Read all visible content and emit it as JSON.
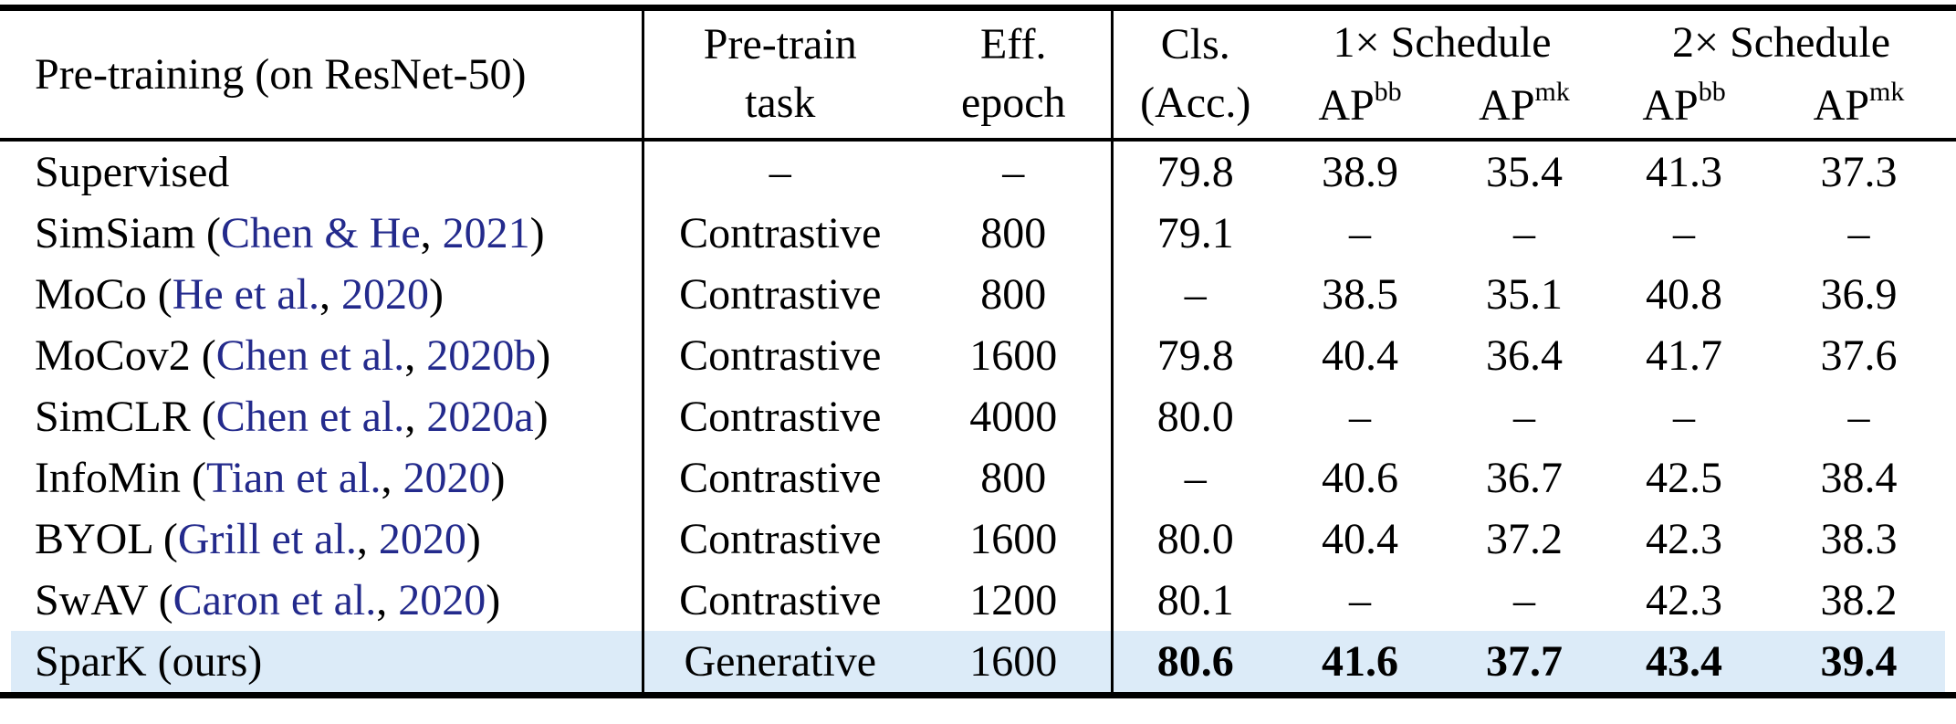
{
  "colors": {
    "link_blue": "#232a8c",
    "highlight_blue": "#dcebf8",
    "rule_black": "#000000"
  },
  "header": {
    "pretraining": "Pre-training (on ResNet-50)",
    "task": [
      "Pre-train",
      "task"
    ],
    "epoch": [
      "Eff.",
      "epoch"
    ],
    "cls": [
      "Cls.",
      "(Acc.)"
    ],
    "group_1x": "1× Schedule",
    "group_2x": "2× Schedule",
    "ap_headers": [
      {
        "base": "AP",
        "sup": "bb"
      },
      {
        "base": "AP",
        "sup": "mk"
      },
      {
        "base": "AP",
        "sup": "bb"
      },
      {
        "base": "AP",
        "sup": "mk"
      }
    ]
  },
  "rows": [
    {
      "name_segments": [
        {
          "t": "Supervised"
        }
      ],
      "task": "–",
      "epoch": "–",
      "cls": "79.8",
      "ap_1x_bb": "38.9",
      "ap_1x_mk": "35.4",
      "ap_2x_bb": "41.3",
      "ap_2x_mk": "37.3",
      "highlight": false,
      "bold_values": false
    },
    {
      "name_segments": [
        {
          "t": "SimSiam ("
        },
        {
          "t": "Chen & He",
          "link": true
        },
        {
          "t": ","
        },
        {
          "t": " 2021",
          "link": true
        },
        {
          "t": ")"
        }
      ],
      "task": "Contrastive",
      "epoch": "800",
      "cls": "79.1",
      "ap_1x_bb": "–",
      "ap_1x_mk": "–",
      "ap_2x_bb": "–",
      "ap_2x_mk": "–",
      "highlight": false,
      "bold_values": false
    },
    {
      "name_segments": [
        {
          "t": "MoCo ("
        },
        {
          "t": "He et al.",
          "link": true
        },
        {
          "t": ","
        },
        {
          "t": " 2020",
          "link": true
        },
        {
          "t": ")"
        }
      ],
      "task": "Contrastive",
      "epoch": "800",
      "cls": "–",
      "ap_1x_bb": "38.5",
      "ap_1x_mk": "35.1",
      "ap_2x_bb": "40.8",
      "ap_2x_mk": "36.9",
      "highlight": false,
      "bold_values": false
    },
    {
      "name_segments": [
        {
          "t": "MoCov2 ("
        },
        {
          "t": "Chen et al.",
          "link": true
        },
        {
          "t": ","
        },
        {
          "t": " 2020b",
          "link": true
        },
        {
          "t": ")"
        }
      ],
      "task": "Contrastive",
      "epoch": "1600",
      "cls": "79.8",
      "ap_1x_bb": "40.4",
      "ap_1x_mk": "36.4",
      "ap_2x_bb": "41.7",
      "ap_2x_mk": "37.6",
      "highlight": false,
      "bold_values": false
    },
    {
      "name_segments": [
        {
          "t": "SimCLR ("
        },
        {
          "t": "Chen et al.",
          "link": true
        },
        {
          "t": ","
        },
        {
          "t": " 2020a",
          "link": true
        },
        {
          "t": ")"
        }
      ],
      "task": "Contrastive",
      "epoch": "4000",
      "cls": "80.0",
      "ap_1x_bb": "–",
      "ap_1x_mk": "–",
      "ap_2x_bb": "–",
      "ap_2x_mk": "–",
      "highlight": false,
      "bold_values": false
    },
    {
      "name_segments": [
        {
          "t": "InfoMin ("
        },
        {
          "t": "Tian et al.",
          "link": true
        },
        {
          "t": ","
        },
        {
          "t": " 2020",
          "link": true
        },
        {
          "t": ")"
        }
      ],
      "task": "Contrastive",
      "epoch": "800",
      "cls": "–",
      "ap_1x_bb": "40.6",
      "ap_1x_mk": "36.7",
      "ap_2x_bb": "42.5",
      "ap_2x_mk": "38.4",
      "highlight": false,
      "bold_values": false
    },
    {
      "name_segments": [
        {
          "t": "BYOL ("
        },
        {
          "t": "Grill et al.",
          "link": true
        },
        {
          "t": ","
        },
        {
          "t": " 2020",
          "link": true
        },
        {
          "t": ")"
        }
      ],
      "task": "Contrastive",
      "epoch": "1600",
      "cls": "80.0",
      "ap_1x_bb": "40.4",
      "ap_1x_mk": "37.2",
      "ap_2x_bb": "42.3",
      "ap_2x_mk": "38.3",
      "highlight": false,
      "bold_values": false
    },
    {
      "name_segments": [
        {
          "t": "SwAV ("
        },
        {
          "t": "Caron et al.",
          "link": true
        },
        {
          "t": ","
        },
        {
          "t": " 2020",
          "link": true
        },
        {
          "t": ")"
        }
      ],
      "task": "Contrastive",
      "epoch": "1200",
      "cls": "80.1",
      "ap_1x_bb": "–",
      "ap_1x_mk": "–",
      "ap_2x_bb": "42.3",
      "ap_2x_mk": "38.2",
      "highlight": false,
      "bold_values": false
    },
    {
      "name_segments": [
        {
          "t": "SparK (ours)"
        }
      ],
      "task": "Generative",
      "epoch": "1600",
      "cls": "80.6",
      "ap_1x_bb": "41.6",
      "ap_1x_mk": "37.7",
      "ap_2x_bb": "43.4",
      "ap_2x_mk": "39.4",
      "highlight": true,
      "bold_values": true
    }
  ]
}
